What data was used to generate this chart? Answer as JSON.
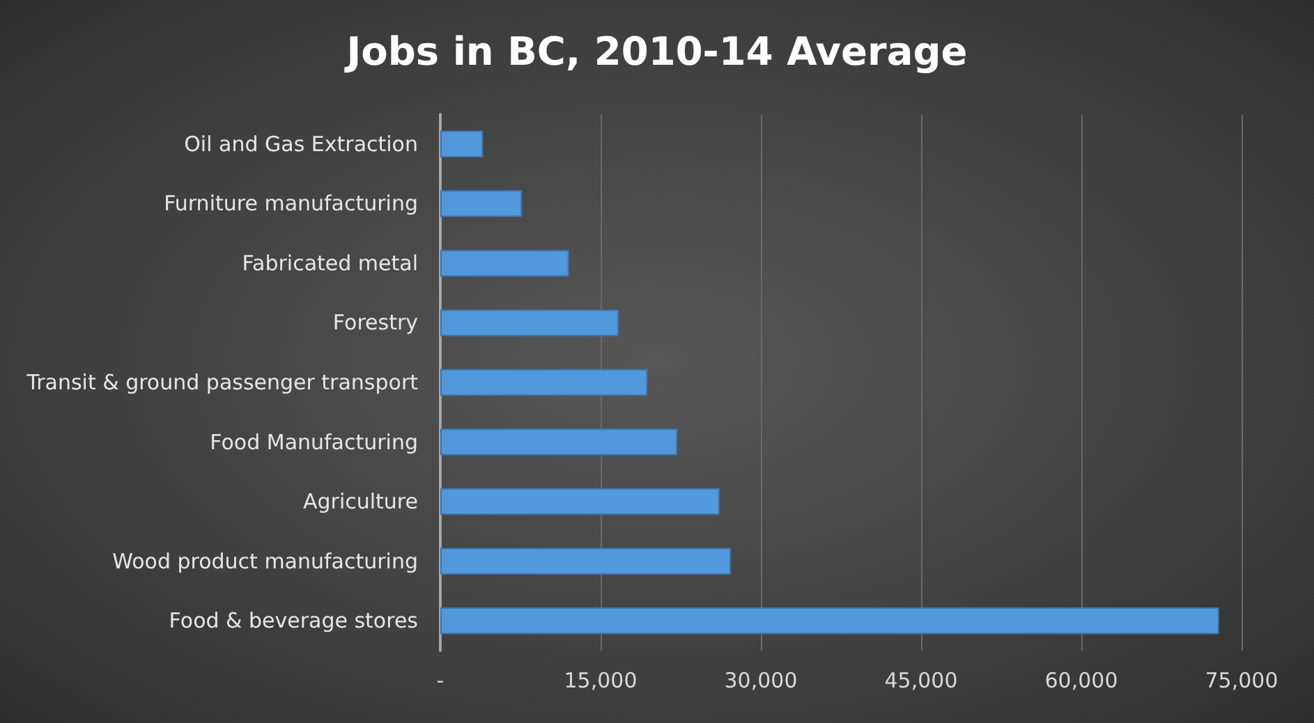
{
  "chart_data": {
    "type": "bar",
    "orientation": "horizontal",
    "title": "Jobs in BC, 2010-14 Average",
    "categories": [
      "Oil and Gas Extraction",
      "Furniture manufacturing",
      "Fabricated metal",
      "Forestry",
      "Transit & ground passenger transport",
      "Food Manufacturing",
      "Agriculture",
      "Wood product manufacturing",
      "Food & beverage stores"
    ],
    "values": [
      4000,
      7650,
      12050,
      16700,
      19400,
      22200,
      26150,
      27200,
      72900
    ],
    "color": "#5198dc",
    "xlim": [
      0,
      75000
    ],
    "xticks": [
      {
        "value": 0,
        "label": "-"
      },
      {
        "value": 15000,
        "label": "15,000"
      },
      {
        "value": 30000,
        "label": "30,000"
      },
      {
        "value": 45000,
        "label": "45,000"
      },
      {
        "value": 60000,
        "label": "60,000"
      },
      {
        "value": 75000,
        "label": "75,000"
      }
    ],
    "grid": "x"
  }
}
